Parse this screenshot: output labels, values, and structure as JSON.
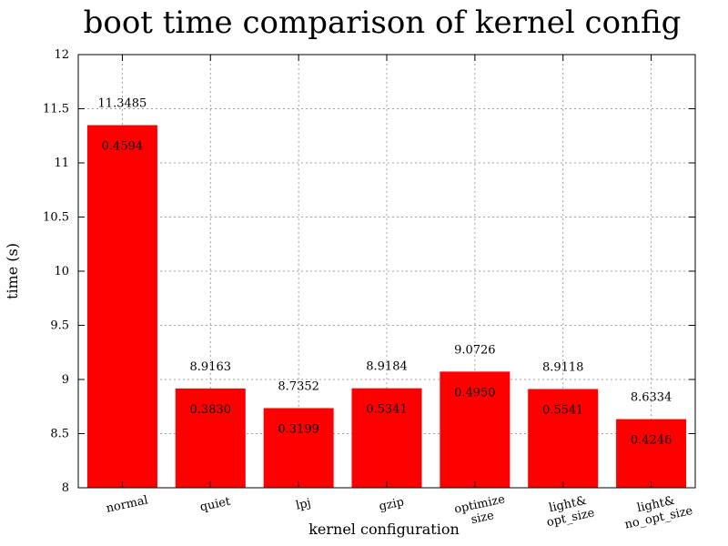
{
  "chart_data": {
    "type": "bar",
    "title": "boot time comparison of kernel config",
    "xlabel": "kernel configuration",
    "ylabel": "time (s)",
    "ylim": [
      8,
      12
    ],
    "yticks": [
      "8",
      "8.5",
      "9",
      "9.5",
      "10",
      "10.5",
      "11",
      "11.5",
      "12"
    ],
    "grid": true,
    "bar_color": "#ff0000",
    "categories": [
      [
        "normal"
      ],
      [
        "quiet"
      ],
      [
        "lpj"
      ],
      [
        "gzip"
      ],
      [
        "optimize",
        "size"
      ],
      [
        "light&",
        "opt_size"
      ],
      [
        "light&",
        "no_opt_size"
      ]
    ],
    "values": [
      11.3485,
      8.9163,
      8.7352,
      8.9184,
      9.0726,
      8.9118,
      8.6334
    ],
    "value_labels": [
      "11.3485",
      "8.9163",
      "8.7352",
      "8.9184",
      "9.0726",
      "8.9118",
      "8.6334"
    ],
    "secondary_labels": [
      "0.4594",
      "0.3830",
      "0.3199",
      "0.5341",
      "0.4950",
      "0.5541",
      "0.4246"
    ]
  }
}
